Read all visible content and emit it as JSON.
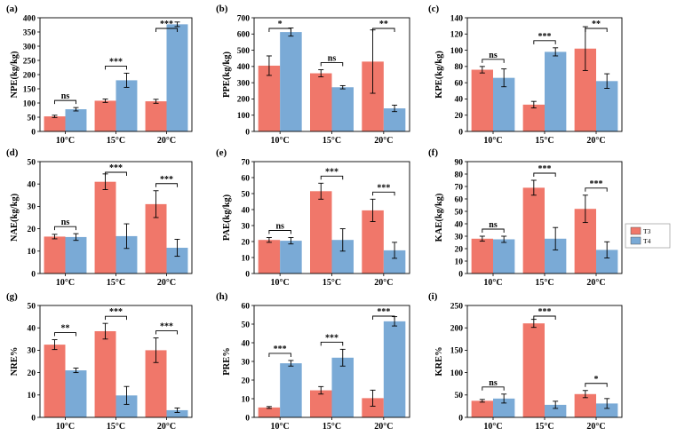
{
  "colors": {
    "T3": "#F0776A",
    "T4": "#7AAAD6"
  },
  "legend": {
    "entries": [
      "T3",
      "T4"
    ]
  },
  "chart_data": [
    {
      "panel": "(a)",
      "type": "bar",
      "ylabel": "NPE(kg/kg)",
      "ylim": [
        0,
        400
      ],
      "yticks": [
        "0",
        "50",
        "100",
        "150",
        "200",
        "250",
        "300",
        "350",
        "400"
      ],
      "categories": [
        "10°C",
        "15°C",
        "20°C"
      ],
      "series": [
        {
          "name": "T3",
          "values": [
            53,
            108,
            106
          ],
          "errors": [
            4,
            6,
            7
          ]
        },
        {
          "name": "T4",
          "values": [
            78,
            180,
            377
          ],
          "errors": [
            6,
            25,
            8
          ]
        }
      ],
      "significance": [
        "ns",
        "***",
        "***"
      ]
    },
    {
      "panel": "(b)",
      "type": "bar",
      "ylabel": "PPE(kg/kg)",
      "ylim": [
        0,
        700
      ],
      "yticks": [
        "0",
        "100",
        "200",
        "300",
        "400",
        "500",
        "600",
        "700"
      ],
      "categories": [
        "10°C",
        "15°C",
        "20°C"
      ],
      "series": [
        {
          "name": "T3",
          "values": [
            405,
            358,
            430
          ],
          "errors": [
            60,
            22,
            195
          ]
        },
        {
          "name": "T4",
          "values": [
            612,
            272,
            142
          ],
          "errors": [
            25,
            10,
            20
          ]
        }
      ],
      "significance": [
        "*",
        "ns",
        "**"
      ]
    },
    {
      "panel": "(c)",
      "type": "bar",
      "ylabel": "KPE(kg/kg)",
      "ylim": [
        0,
        140
      ],
      "yticks": [
        "0",
        "20",
        "40",
        "60",
        "80",
        "100",
        "120",
        "140"
      ],
      "categories": [
        "10°C",
        "15°C",
        "20°C"
      ],
      "series": [
        {
          "name": "T3",
          "values": [
            76,
            33,
            102
          ],
          "errors": [
            4,
            4,
            27
          ]
        },
        {
          "name": "T4",
          "values": [
            66,
            98,
            62
          ],
          "errors": [
            11,
            5,
            9
          ]
        }
      ],
      "significance": [
        "ns",
        "***",
        "**"
      ]
    },
    {
      "panel": "(d)",
      "type": "bar",
      "ylabel": "NAE(kg/kg)",
      "ylim": [
        0,
        50
      ],
      "yticks": [
        "0",
        "10",
        "20",
        "30",
        "40",
        "50"
      ],
      "categories": [
        "10°C",
        "15°C",
        "20°C"
      ],
      "series": [
        {
          "name": "T3",
          "values": [
            16.5,
            41,
            31
          ],
          "errors": [
            1,
            3.5,
            6
          ]
        },
        {
          "name": "T4",
          "values": [
            16.3,
            16.7,
            11.5
          ],
          "errors": [
            1.5,
            5.5,
            3.8
          ]
        }
      ],
      "significance": [
        "ns",
        "***",
        "***"
      ]
    },
    {
      "panel": "(e)",
      "type": "bar",
      "ylabel": "PAE(kg/kg)",
      "ylim": [
        0,
        70
      ],
      "yticks": [
        "0",
        "10",
        "20",
        "30",
        "40",
        "50",
        "60",
        "70"
      ],
      "categories": [
        "10°C",
        "15°C",
        "20°C"
      ],
      "series": [
        {
          "name": "T3",
          "values": [
            21,
            51.5,
            39.5
          ],
          "errors": [
            1.5,
            5,
            7
          ]
        },
        {
          "name": "T4",
          "values": [
            20.5,
            21,
            14.5
          ],
          "errors": [
            2,
            7,
            5
          ]
        }
      ],
      "significance": [
        "ns",
        "***",
        "***"
      ]
    },
    {
      "panel": "(f)",
      "type": "bar",
      "ylabel": "KAE(kg/kg)",
      "ylim": [
        0,
        90
      ],
      "yticks": [
        "0",
        "10",
        "20",
        "30",
        "40",
        "50",
        "60",
        "70",
        "80",
        "90"
      ],
      "categories": [
        "10°C",
        "15°C",
        "20°C"
      ],
      "series": [
        {
          "name": "T3",
          "values": [
            28,
            69,
            52
          ],
          "errors": [
            2,
            6,
            11
          ]
        },
        {
          "name": "T4",
          "values": [
            27.5,
            28,
            19
          ],
          "errors": [
            2.5,
            9,
            6.5
          ]
        }
      ],
      "significance": [
        "ns",
        "***",
        "***"
      ]
    },
    {
      "panel": "(g)",
      "type": "bar",
      "ylabel": "NRE%",
      "ylim": [
        0,
        50
      ],
      "yticks": [
        "0",
        "10",
        "20",
        "30",
        "40",
        "50"
      ],
      "categories": [
        "10°C",
        "15°C",
        "20°C"
      ],
      "series": [
        {
          "name": "T3",
          "values": [
            32.5,
            38.5,
            30
          ],
          "errors": [
            2.2,
            3.5,
            5.5
          ]
        },
        {
          "name": "T4",
          "values": [
            21,
            9.8,
            3.2
          ],
          "errors": [
            1,
            4,
            1
          ]
        }
      ],
      "significance": [
        "**",
        "***",
        "***"
      ]
    },
    {
      "panel": "(h)",
      "type": "bar",
      "ylabel": "PRE%",
      "ylim": [
        0,
        60
      ],
      "yticks": [
        "0",
        "10",
        "20",
        "30",
        "40",
        "50",
        "60"
      ],
      "categories": [
        "10°C",
        "15°C",
        "20°C"
      ],
      "series": [
        {
          "name": "T3",
          "values": [
            5.3,
            14.5,
            10.3
          ],
          "errors": [
            0.5,
            2,
            4.3
          ]
        },
        {
          "name": "T4",
          "values": [
            29,
            32,
            51.5
          ],
          "errors": [
            1.5,
            4.5,
            2.5
          ]
        }
      ],
      "significance": [
        "***",
        "***",
        "***"
      ]
    },
    {
      "panel": "(i)",
      "type": "bar",
      "ylabel": "KRE%",
      "ylim": [
        0,
        250
      ],
      "yticks": [
        "0",
        "50",
        "100",
        "150",
        "200",
        "250"
      ],
      "categories": [
        "10°C",
        "15°C",
        "20°C"
      ],
      "series": [
        {
          "name": "T3",
          "values": [
            37,
            210,
            52
          ],
          "errors": [
            3,
            9,
            8
          ]
        },
        {
          "name": "T4",
          "values": [
            42,
            28,
            31
          ],
          "errors": [
            10,
            8,
            11
          ]
        }
      ],
      "significance": [
        "ns",
        "***",
        "*"
      ]
    }
  ]
}
